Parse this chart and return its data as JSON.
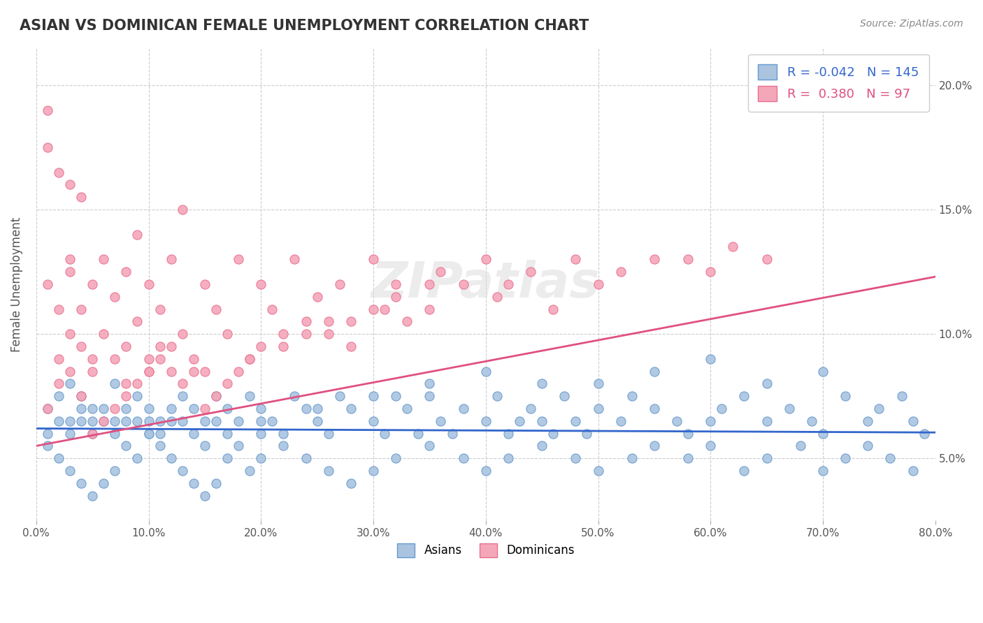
{
  "title": "ASIAN VS DOMINICAN FEMALE UNEMPLOYMENT CORRELATION CHART",
  "source": "Source: ZipAtlas.com",
  "ylabel": "Female Unemployment",
  "xlim": [
    0.0,
    0.8
  ],
  "ylim": [
    0.025,
    0.215
  ],
  "xticks": [
    0.0,
    0.1,
    0.2,
    0.3,
    0.4,
    0.5,
    0.6,
    0.7,
    0.8
  ],
  "xtick_labels": [
    "0.0%",
    "10.0%",
    "20.0%",
    "30.0%",
    "40.0%",
    "50.0%",
    "60.0%",
    "70.0%",
    "80.0%"
  ],
  "yticks": [
    0.05,
    0.1,
    0.15,
    0.2
  ],
  "ytick_labels": [
    "5.0%",
    "10.0%",
    "15.0%",
    "20.0%"
  ],
  "asian_color": "#aac4e0",
  "dominican_color": "#f4a7b9",
  "asian_edge_color": "#6699cc",
  "dominican_edge_color": "#e87090",
  "asian_line_color": "#3366cc",
  "dominican_line_color": "#e05080",
  "R_asian": -0.042,
  "N_asian": 145,
  "R_dominican": 0.38,
  "N_dominican": 97,
  "asian_intercept": 0.062,
  "asian_slope": -0.002,
  "dominican_intercept": 0.055,
  "dominican_slope": 0.085,
  "watermark": "ZIPatlas",
  "background_color": "#ffffff",
  "grid_color": "#cccccc",
  "asian_scatter_x": [
    0.01,
    0.01,
    0.02,
    0.02,
    0.03,
    0.03,
    0.03,
    0.04,
    0.04,
    0.04,
    0.05,
    0.05,
    0.05,
    0.06,
    0.06,
    0.07,
    0.07,
    0.07,
    0.08,
    0.08,
    0.09,
    0.09,
    0.1,
    0.1,
    0.1,
    0.11,
    0.11,
    0.12,
    0.12,
    0.13,
    0.13,
    0.14,
    0.14,
    0.15,
    0.15,
    0.16,
    0.16,
    0.17,
    0.17,
    0.18,
    0.19,
    0.2,
    0.2,
    0.21,
    0.22,
    0.23,
    0.24,
    0.25,
    0.26,
    0.27,
    0.28,
    0.3,
    0.31,
    0.32,
    0.33,
    0.34,
    0.35,
    0.36,
    0.37,
    0.38,
    0.4,
    0.41,
    0.42,
    0.43,
    0.44,
    0.45,
    0.46,
    0.47,
    0.48,
    0.49,
    0.5,
    0.52,
    0.53,
    0.55,
    0.57,
    0.58,
    0.6,
    0.61,
    0.63,
    0.65,
    0.67,
    0.69,
    0.7,
    0.72,
    0.74,
    0.75,
    0.77,
    0.78,
    0.79,
    0.01,
    0.02,
    0.03,
    0.04,
    0.05,
    0.06,
    0.07,
    0.08,
    0.09,
    0.1,
    0.11,
    0.12,
    0.13,
    0.14,
    0.15,
    0.16,
    0.17,
    0.18,
    0.19,
    0.2,
    0.22,
    0.24,
    0.26,
    0.28,
    0.3,
    0.32,
    0.35,
    0.38,
    0.4,
    0.42,
    0.45,
    0.48,
    0.5,
    0.53,
    0.55,
    0.58,
    0.6,
    0.63,
    0.65,
    0.68,
    0.7,
    0.72,
    0.74,
    0.76,
    0.78,
    0.35,
    0.4,
    0.45,
    0.5,
    0.55,
    0.6,
    0.65,
    0.7,
    0.25,
    0.3,
    0.2
  ],
  "asian_scatter_y": [
    0.07,
    0.06,
    0.065,
    0.075,
    0.08,
    0.065,
    0.06,
    0.07,
    0.065,
    0.075,
    0.065,
    0.07,
    0.06,
    0.065,
    0.07,
    0.065,
    0.08,
    0.06,
    0.065,
    0.07,
    0.065,
    0.075,
    0.06,
    0.065,
    0.07,
    0.065,
    0.06,
    0.07,
    0.065,
    0.075,
    0.065,
    0.06,
    0.07,
    0.065,
    0.055,
    0.075,
    0.065,
    0.06,
    0.07,
    0.065,
    0.075,
    0.06,
    0.07,
    0.065,
    0.06,
    0.075,
    0.07,
    0.065,
    0.06,
    0.075,
    0.07,
    0.065,
    0.06,
    0.075,
    0.07,
    0.06,
    0.075,
    0.065,
    0.06,
    0.07,
    0.065,
    0.075,
    0.06,
    0.065,
    0.07,
    0.065,
    0.06,
    0.075,
    0.065,
    0.06,
    0.07,
    0.065,
    0.075,
    0.07,
    0.065,
    0.06,
    0.065,
    0.07,
    0.075,
    0.065,
    0.07,
    0.065,
    0.06,
    0.075,
    0.065,
    0.07,
    0.075,
    0.065,
    0.06,
    0.055,
    0.05,
    0.045,
    0.04,
    0.035,
    0.04,
    0.045,
    0.055,
    0.05,
    0.06,
    0.055,
    0.05,
    0.045,
    0.04,
    0.035,
    0.04,
    0.05,
    0.055,
    0.045,
    0.05,
    0.055,
    0.05,
    0.045,
    0.04,
    0.045,
    0.05,
    0.055,
    0.05,
    0.045,
    0.05,
    0.055,
    0.05,
    0.045,
    0.05,
    0.055,
    0.05,
    0.055,
    0.045,
    0.05,
    0.055,
    0.045,
    0.05,
    0.055,
    0.05,
    0.045,
    0.08,
    0.085,
    0.08,
    0.08,
    0.085,
    0.09,
    0.08,
    0.085,
    0.07,
    0.075,
    0.065
  ],
  "dominican_scatter_x": [
    0.01,
    0.01,
    0.02,
    0.02,
    0.02,
    0.03,
    0.03,
    0.03,
    0.03,
    0.04,
    0.04,
    0.04,
    0.05,
    0.05,
    0.05,
    0.06,
    0.06,
    0.07,
    0.07,
    0.08,
    0.08,
    0.08,
    0.09,
    0.09,
    0.1,
    0.1,
    0.1,
    0.11,
    0.11,
    0.12,
    0.12,
    0.13,
    0.13,
    0.14,
    0.15,
    0.15,
    0.16,
    0.17,
    0.18,
    0.19,
    0.2,
    0.21,
    0.22,
    0.23,
    0.24,
    0.25,
    0.26,
    0.27,
    0.28,
    0.3,
    0.31,
    0.32,
    0.33,
    0.35,
    0.36,
    0.38,
    0.4,
    0.41,
    0.42,
    0.44,
    0.46,
    0.48,
    0.5,
    0.52,
    0.55,
    0.58,
    0.6,
    0.62,
    0.65,
    0.01,
    0.01,
    0.02,
    0.03,
    0.04,
    0.05,
    0.06,
    0.07,
    0.08,
    0.09,
    0.1,
    0.11,
    0.12,
    0.13,
    0.14,
    0.15,
    0.16,
    0.17,
    0.18,
    0.19,
    0.2,
    0.22,
    0.24,
    0.26,
    0.28,
    0.3,
    0.32,
    0.35
  ],
  "dominican_scatter_y": [
    0.07,
    0.12,
    0.09,
    0.11,
    0.08,
    0.13,
    0.1,
    0.085,
    0.125,
    0.095,
    0.11,
    0.075,
    0.09,
    0.12,
    0.085,
    0.1,
    0.13,
    0.09,
    0.115,
    0.095,
    0.125,
    0.08,
    0.105,
    0.14,
    0.09,
    0.12,
    0.085,
    0.11,
    0.095,
    0.13,
    0.085,
    0.1,
    0.15,
    0.09,
    0.12,
    0.085,
    0.11,
    0.1,
    0.13,
    0.09,
    0.12,
    0.11,
    0.095,
    0.13,
    0.1,
    0.115,
    0.105,
    0.12,
    0.095,
    0.13,
    0.11,
    0.12,
    0.105,
    0.11,
    0.125,
    0.12,
    0.13,
    0.115,
    0.12,
    0.125,
    0.11,
    0.13,
    0.12,
    0.125,
    0.13,
    0.13,
    0.125,
    0.135,
    0.13,
    0.175,
    0.19,
    0.165,
    0.16,
    0.155,
    0.06,
    0.065,
    0.07,
    0.075,
    0.08,
    0.085,
    0.09,
    0.095,
    0.08,
    0.085,
    0.07,
    0.075,
    0.08,
    0.085,
    0.09,
    0.095,
    0.1,
    0.105,
    0.1,
    0.105,
    0.11,
    0.115,
    0.12
  ]
}
